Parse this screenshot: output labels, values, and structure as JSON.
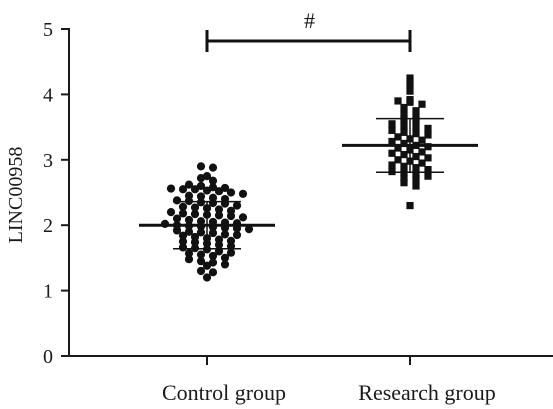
{
  "chart_data": {
    "type": "scatter",
    "ylabel": "LINC00958",
    "ylim": [
      0,
      5
    ],
    "yticks": [
      "0",
      "1",
      "2",
      "3",
      "4",
      "5"
    ],
    "categories": [
      "Control group",
      "Research group"
    ],
    "grid": false,
    "legend": "none",
    "significance": {
      "between": [
        "Control group",
        "Research group"
      ],
      "label": "#"
    },
    "series": [
      {
        "category": "Control group",
        "marker": "circle",
        "mean": 2.0,
        "sd": 0.36,
        "values": [
          2.9,
          2.88,
          2.75,
          2.72,
          2.68,
          2.62,
          2.6,
          2.58,
          2.57,
          2.56,
          2.55,
          2.55,
          2.53,
          2.52,
          2.5,
          2.48,
          2.45,
          2.44,
          2.42,
          2.4,
          2.38,
          2.37,
          2.35,
          2.34,
          2.33,
          2.3,
          2.28,
          2.27,
          2.26,
          2.24,
          2.22,
          2.2,
          2.18,
          2.17,
          2.16,
          2.15,
          2.14,
          2.12,
          2.1,
          2.08,
          2.06,
          2.05,
          2.04,
          2.03,
          2.02,
          2.0,
          1.99,
          1.98,
          1.97,
          1.96,
          1.95,
          1.94,
          1.92,
          1.9,
          1.89,
          1.88,
          1.86,
          1.85,
          1.84,
          1.82,
          1.8,
          1.78,
          1.76,
          1.75,
          1.74,
          1.72,
          1.7,
          1.68,
          1.66,
          1.65,
          1.63,
          1.6,
          1.58,
          1.57,
          1.55,
          1.53,
          1.5,
          1.48,
          1.45,
          1.43,
          1.4,
          1.38,
          1.3,
          1.28,
          1.2
        ]
      },
      {
        "category": "Research group",
        "marker": "square",
        "mean": 3.22,
        "sd": 0.41,
        "values": [
          4.25,
          4.15,
          4.05,
          3.92,
          3.9,
          3.88,
          3.85,
          3.8,
          3.75,
          3.7,
          3.65,
          3.62,
          3.6,
          3.55,
          3.52,
          3.5,
          3.48,
          3.45,
          3.42,
          3.4,
          3.38,
          3.35,
          3.32,
          3.3,
          3.28,
          3.25,
          3.22,
          3.2,
          3.18,
          3.15,
          3.12,
          3.1,
          3.08,
          3.05,
          3.03,
          3.0,
          2.98,
          2.95,
          2.92,
          2.9,
          2.88,
          2.85,
          2.82,
          2.8,
          2.78,
          2.75,
          2.72,
          2.7,
          2.65,
          2.6,
          2.3
        ]
      }
    ]
  }
}
